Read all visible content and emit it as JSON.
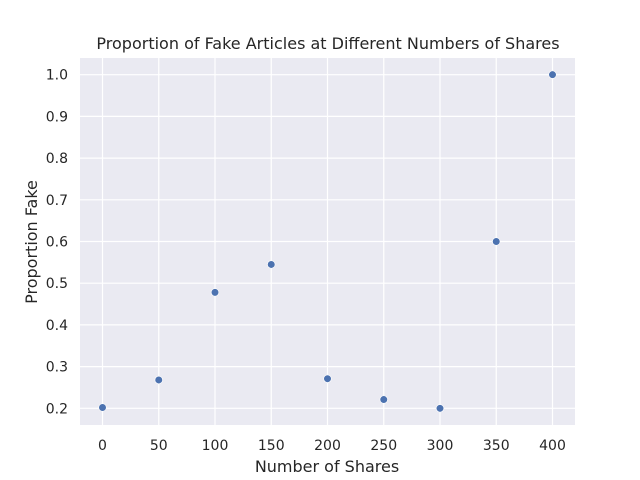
{
  "chart_data": {
    "type": "scatter",
    "title": "Proportion of Fake Articles at Different Numbers of Shares",
    "xlabel": "Number of Shares",
    "ylabel": "Proportion Fake",
    "x": [
      0,
      50,
      100,
      150,
      200,
      250,
      300,
      350,
      400
    ],
    "y": [
      0.202,
      0.268,
      0.478,
      0.545,
      0.271,
      0.221,
      0.2,
      0.6,
      1.0
    ],
    "xlim": [
      -20,
      420
    ],
    "ylim": [
      0.16,
      1.04
    ],
    "xticks": [
      "0",
      "50",
      "100",
      "150",
      "200",
      "250",
      "300",
      "350",
      "400"
    ],
    "yticks": [
      "0.2",
      "0.3",
      "0.4",
      "0.5",
      "0.6",
      "0.7",
      "0.8",
      "0.9",
      "1.0"
    ],
    "grid": true,
    "colors": {
      "background": "#eaeaf2",
      "grid": "#ffffff",
      "marker": "#4c72b0"
    }
  }
}
